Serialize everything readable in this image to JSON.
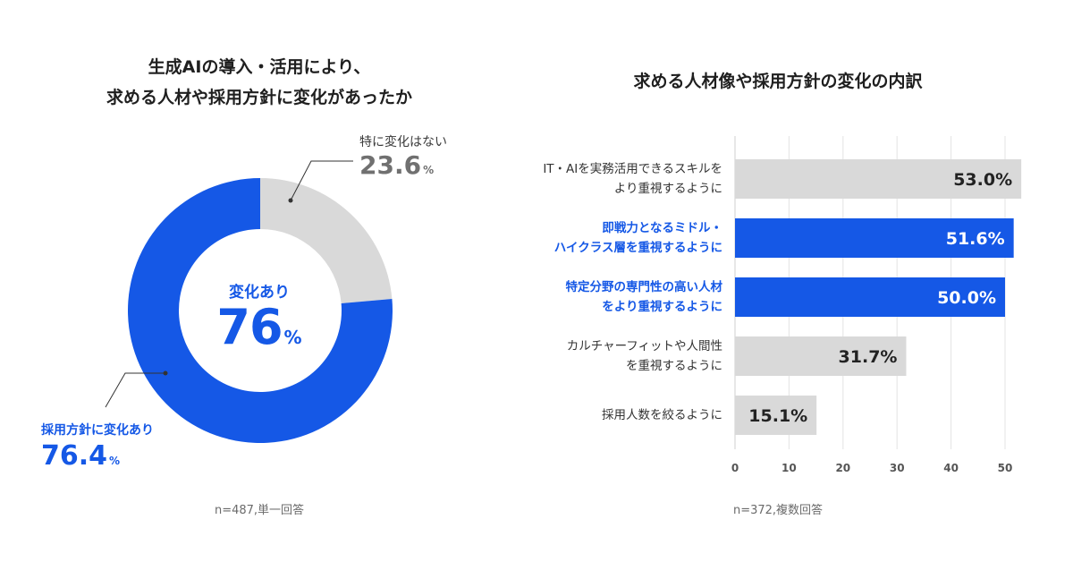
{
  "colors": {
    "accent_blue": "#1558e6",
    "gray_bar": "#d9d9d9",
    "text_dark": "#222222",
    "text_gray": "#707070",
    "grid_line": "#e3e3e3"
  },
  "left": {
    "title_line1": "生成AIの導入・活用により、",
    "title_line2": "求める人材や採用方針に変化があったか",
    "center_label": "変化あり",
    "center_value": "76",
    "center_unit": "%",
    "nochange_label": "特に変化はない",
    "nochange_value": "23.6",
    "nochange_unit": "%",
    "change_label": "採用方針に変化あり",
    "change_value": "76.4",
    "change_unit": "%",
    "note": "n=487,単一回答"
  },
  "right": {
    "title": "求める人材像や採用方針の変化の内訳",
    "note": "n=372,複数回答"
  },
  "chart_data": [
    {
      "type": "pie",
      "title": "生成AIの導入・活用により、求める人材や採用方針に変化があったか",
      "slices": [
        {
          "label": "特に変化はない",
          "value": 23.6,
          "color": "#d9d9d9"
        },
        {
          "label": "採用方針に変化あり",
          "value": 76.4,
          "color": "#1558e6"
        }
      ],
      "center_text": "変化あり 76%"
    },
    {
      "type": "bar",
      "orientation": "horizontal",
      "title": "求める人材像や採用方針の変化の内訳",
      "categories": [
        [
          "IT・AIを実務活用できるスキルを",
          "より重視するように"
        ],
        [
          "即戦力となるミドル・",
          "ハイクラス層を重視するように"
        ],
        [
          "特定分野の専門性の高い人材",
          "をより重視するように"
        ],
        [
          "カルチャーフィットや人間性",
          "を重視するように"
        ],
        [
          "採用人数を絞るように"
        ]
      ],
      "values": [
        53.0,
        51.6,
        50.0,
        31.7,
        15.1
      ],
      "value_labels": [
        "53.0%",
        "51.6%",
        "50.0%",
        "31.7%",
        "15.1%"
      ],
      "highlight": [
        false,
        true,
        true,
        false,
        false
      ],
      "xlim": [
        0,
        50
      ],
      "xticks": [
        0,
        10,
        20,
        30,
        40,
        50
      ],
      "grid": true
    }
  ]
}
